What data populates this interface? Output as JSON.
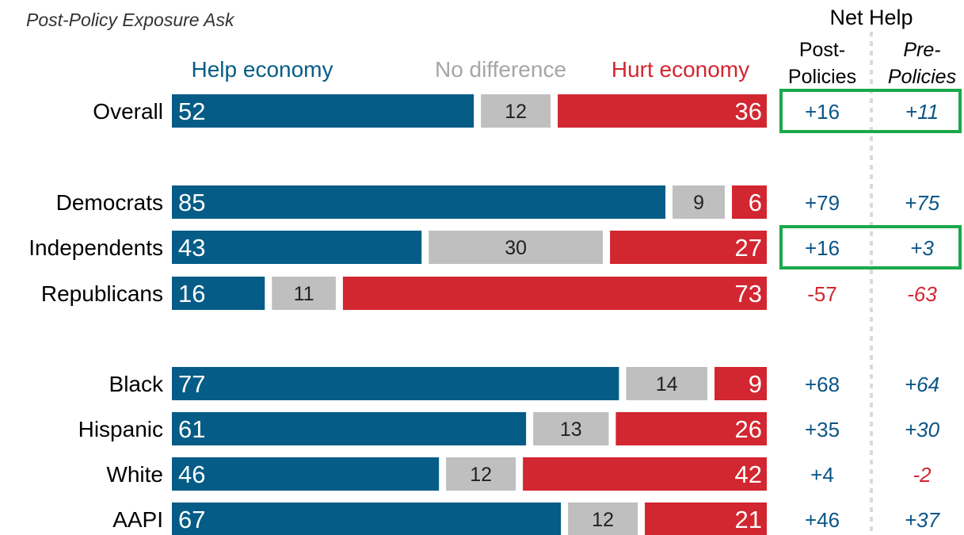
{
  "chart_data": {
    "type": "bar",
    "stacked": true,
    "orientation": "horizontal",
    "title": "",
    "subtitle": "Post-Policy Exposure Ask",
    "categories": [
      "Overall",
      "Democrats",
      "Independents",
      "Republicans",
      "Black",
      "Hispanic",
      "White",
      "AAPI"
    ],
    "series": [
      {
        "name": "Help economy",
        "values": [
          52,
          85,
          43,
          16,
          77,
          61,
          46,
          67
        ]
      },
      {
        "name": "No difference",
        "values": [
          12,
          9,
          30,
          11,
          14,
          13,
          12,
          12
        ]
      },
      {
        "name": "Hurt economy",
        "values": [
          36,
          6,
          27,
          73,
          9,
          26,
          42,
          21
        ]
      }
    ],
    "net_help": {
      "heading": "Net Help",
      "columns": [
        {
          "label_line1": "Post-",
          "label_line2": "Policies",
          "values": [
            "+16",
            "+79",
            "+16",
            "-57",
            "+68",
            "+35",
            "+4",
            "+46"
          ]
        },
        {
          "label_line1": "Pre-",
          "label_line2": "Policies",
          "values": [
            "+11",
            "+75",
            "+3",
            "-63",
            "+64",
            "+30",
            "-2",
            "+37"
          ]
        }
      ],
      "highlighted_rows": [
        "Overall",
        "Independents"
      ]
    },
    "colors": {
      "help": "#055c86",
      "nodiff": "#bfbfbf",
      "hurt": "#d22630",
      "nodiff_label": "#a6a6a6",
      "positive": "#0b5686",
      "negative": "#d22630",
      "highlight": "#1aa84a",
      "divider": "#d9d9d9"
    },
    "xlim": [
      0,
      100
    ],
    "grid": false,
    "legend": "top"
  }
}
